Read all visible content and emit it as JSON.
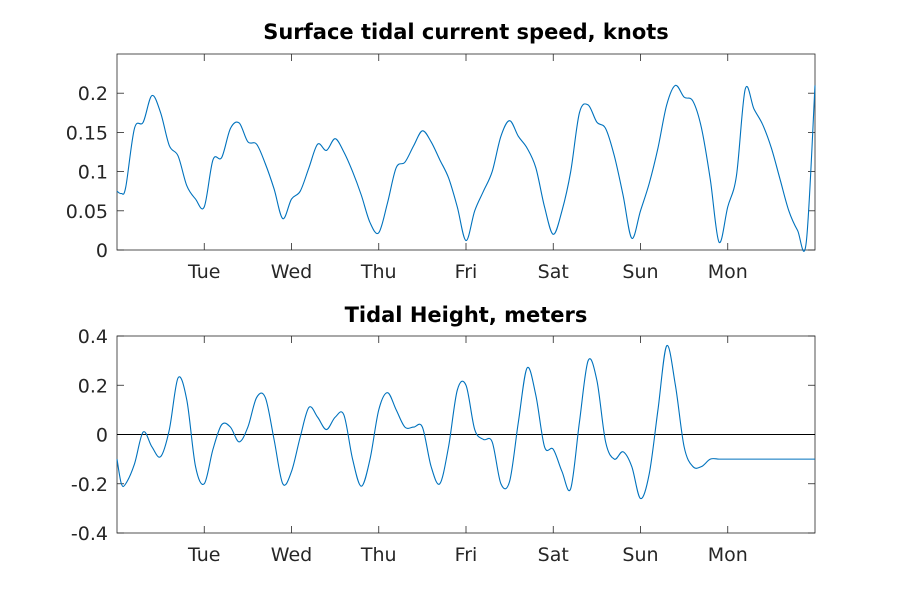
{
  "chart_data": [
    {
      "type": "line",
      "title": "Surface tidal current speed, knots",
      "xlabel": "",
      "ylabel": "",
      "ylim": [
        0,
        0.25
      ],
      "yticks": [
        0,
        0.05,
        0.1,
        0.15,
        0.2
      ],
      "ytick_labels": [
        "0",
        "0.05",
        "0.1",
        "0.15",
        "0.2"
      ],
      "xlim": [
        0,
        8
      ],
      "xticks": [
        1,
        2,
        3,
        4,
        5,
        6,
        7
      ],
      "xtick_labels": [
        "Tue",
        "Wed",
        "Thu",
        "Fri",
        "Sat",
        "Sun",
        "Mon"
      ],
      "grid": false,
      "series": [
        {
          "color": "#0072BD",
          "x": [
            0.0,
            0.05,
            0.1,
            0.2,
            0.3,
            0.4,
            0.5,
            0.6,
            0.7,
            0.8,
            0.9,
            1.0,
            1.1,
            1.2,
            1.3,
            1.4,
            1.5,
            1.6,
            1.7,
            1.8,
            1.9,
            2.0,
            2.1,
            2.2,
            2.3,
            2.4,
            2.5,
            2.6,
            2.7,
            2.8,
            2.9,
            3.0,
            3.1,
            3.2,
            3.3,
            3.4,
            3.5,
            3.6,
            3.7,
            3.8,
            3.9,
            4.0,
            4.1,
            4.2,
            4.3,
            4.4,
            4.5,
            4.6,
            4.7,
            4.8,
            4.9,
            5.0,
            5.1,
            5.2,
            5.3,
            5.4,
            5.5,
            5.6,
            5.7,
            5.8,
            5.9,
            6.0,
            6.1,
            6.2,
            6.3,
            6.4,
            6.5,
            6.6,
            6.7,
            6.8,
            6.9,
            7.0,
            7.1,
            7.2,
            7.3,
            7.4,
            7.5,
            7.6,
            7.7,
            7.8,
            7.9,
            8.0
          ],
          "y": [
            0.075,
            0.072,
            0.08,
            0.155,
            0.163,
            0.197,
            0.175,
            0.133,
            0.12,
            0.082,
            0.065,
            0.055,
            0.115,
            0.118,
            0.155,
            0.162,
            0.138,
            0.135,
            0.11,
            0.078,
            0.04,
            0.065,
            0.075,
            0.105,
            0.135,
            0.127,
            0.142,
            0.125,
            0.1,
            0.07,
            0.035,
            0.022,
            0.06,
            0.105,
            0.112,
            0.133,
            0.152,
            0.138,
            0.115,
            0.092,
            0.055,
            0.012,
            0.05,
            0.075,
            0.1,
            0.145,
            0.165,
            0.145,
            0.13,
            0.105,
            0.055,
            0.02,
            0.05,
            0.1,
            0.175,
            0.185,
            0.163,
            0.155,
            0.12,
            0.07,
            0.015,
            0.05,
            0.085,
            0.13,
            0.185,
            0.21,
            0.195,
            0.19,
            0.155,
            0.09,
            0.01,
            0.055,
            0.095,
            0.205,
            0.18,
            0.16,
            0.13,
            0.09,
            0.05,
            0.025,
            0.01,
            0.21
          ]
        }
      ]
    },
    {
      "type": "line",
      "title": "Tidal Height, meters",
      "xlabel": "",
      "ylabel": "",
      "ylim": [
        -0.4,
        0.4
      ],
      "yticks": [
        -0.4,
        -0.2,
        0,
        0.2,
        0.4
      ],
      "ytick_labels": [
        "-0.4",
        "-0.2",
        "0",
        "0.2",
        "0.4"
      ],
      "xlim": [
        0,
        8
      ],
      "xticks": [
        1,
        2,
        3,
        4,
        5,
        6,
        7
      ],
      "xtick_labels": [
        "Tue",
        "Wed",
        "Thu",
        "Fri",
        "Sat",
        "Sun",
        "Mon"
      ],
      "grid": false,
      "zero_line": true,
      "series": [
        {
          "color": "#0072BD",
          "x": [
            0.0,
            0.05,
            0.1,
            0.2,
            0.3,
            0.4,
            0.5,
            0.6,
            0.7,
            0.8,
            0.9,
            1.0,
            1.1,
            1.2,
            1.3,
            1.4,
            1.5,
            1.6,
            1.7,
            1.8,
            1.9,
            2.0,
            2.1,
            2.2,
            2.3,
            2.4,
            2.5,
            2.6,
            2.7,
            2.8,
            2.9,
            3.0,
            3.1,
            3.2,
            3.3,
            3.4,
            3.5,
            3.6,
            3.7,
            3.8,
            3.9,
            4.0,
            4.1,
            4.2,
            4.3,
            4.4,
            4.5,
            4.6,
            4.7,
            4.8,
            4.9,
            5.0,
            5.1,
            5.2,
            5.3,
            5.4,
            5.5,
            5.6,
            5.7,
            5.8,
            5.9,
            6.0,
            6.1,
            6.2,
            6.3,
            6.4,
            6.5,
            6.6,
            6.7,
            6.8,
            6.9,
            7.0,
            7.1,
            7.2,
            7.3,
            7.4,
            7.5,
            7.6,
            7.7,
            7.8,
            7.9,
            8.0
          ],
          "y": [
            -0.1,
            -0.2,
            -0.2,
            -0.12,
            0.01,
            -0.05,
            -0.09,
            0.02,
            0.23,
            0.14,
            -0.13,
            -0.2,
            -0.06,
            0.04,
            0.03,
            -0.03,
            0.03,
            0.15,
            0.15,
            -0.02,
            -0.2,
            -0.15,
            -0.01,
            0.11,
            0.07,
            0.02,
            0.07,
            0.08,
            -0.1,
            -0.21,
            -0.1,
            0.1,
            0.17,
            0.1,
            0.03,
            0.03,
            0.03,
            -0.13,
            -0.2,
            -0.05,
            0.18,
            0.2,
            0.02,
            -0.02,
            -0.03,
            -0.2,
            -0.19,
            0.05,
            0.27,
            0.16,
            -0.05,
            -0.06,
            -0.15,
            -0.22,
            0.05,
            0.3,
            0.22,
            -0.03,
            -0.1,
            -0.07,
            -0.13,
            -0.26,
            -0.16,
            0.1,
            0.36,
            0.2,
            -0.05,
            -0.13,
            -0.13,
            -0.1,
            -0.1,
            -0.1,
            -0.1,
            -0.1,
            -0.1,
            -0.1,
            -0.1,
            -0.1,
            -0.1,
            -0.1,
            -0.1,
            -0.1
          ]
        }
      ]
    }
  ]
}
